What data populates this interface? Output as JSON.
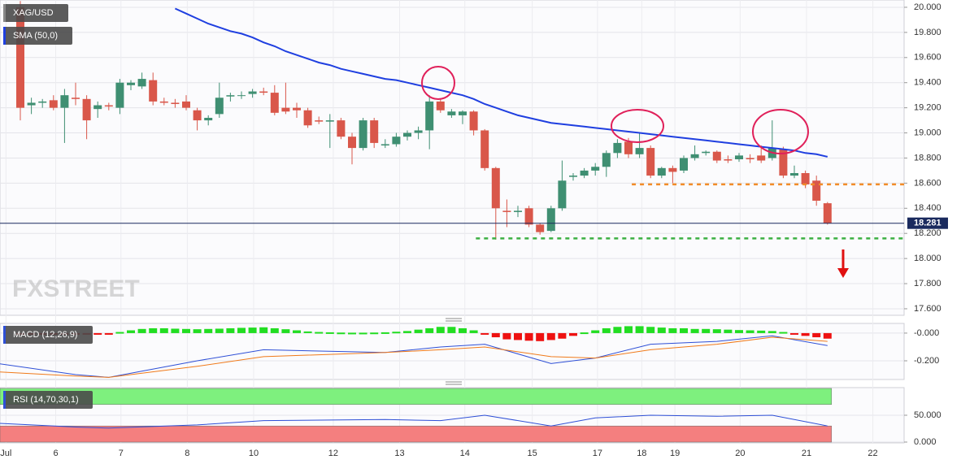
{
  "chart_data": [
    {
      "type": "candlestick",
      "title": "XAG/USD",
      "watermark": "FXSTREET",
      "ylim": [
        17.548,
        20.058
      ],
      "yticks": [
        {
          "value": 20,
          "label": "20.000"
        },
        {
          "value": 19.8,
          "label": "19.800"
        },
        {
          "value": 19.6,
          "label": "19.600"
        },
        {
          "value": 19.4,
          "label": "19.400"
        },
        {
          "value": 19.2,
          "label": "19.200"
        },
        {
          "value": 19,
          "label": "19.000"
        },
        {
          "value": 18.8,
          "label": "18.800"
        },
        {
          "value": 18.6,
          "label": "18.600"
        },
        {
          "value": 18.4,
          "label": "18.400"
        },
        {
          "value": 18.2,
          "label": "18.200"
        },
        {
          "value": 18,
          "label": "18.000"
        },
        {
          "value": 17.8,
          "label": "17.800"
        },
        {
          "value": 17.6,
          "label": "17.600"
        }
      ],
      "up_color": "#3f8f72",
      "down_color": "#d9574a",
      "open": [
        20.0,
        19.22,
        19.24,
        19.26,
        19.2,
        19.28,
        19.27,
        19.19,
        19.22,
        19.2,
        19.38,
        19.37,
        19.42,
        19.25,
        19.24,
        19.25,
        19.18,
        19.1,
        19.15,
        19.29,
        19.3,
        19.31,
        19.33,
        19.32,
        19.2,
        19.2,
        19.18,
        19.1,
        19.09,
        19.1,
        18.97,
        18.88,
        19.1,
        18.9,
        18.91,
        18.97,
        19.0,
        19.02,
        19.25,
        19.14,
        19.14,
        19.17,
        19.02,
        18.72,
        18.38,
        18.37,
        18.4,
        18.27,
        18.22,
        18.4,
        18.65,
        18.66,
        18.7,
        18.73,
        18.84,
        18.93,
        18.83,
        18.88,
        18.66,
        18.72,
        18.7,
        18.8,
        18.84,
        18.85,
        18.79,
        18.79,
        18.8,
        18.82,
        18.8,
        18.87,
        18.66,
        18.68,
        18.62,
        18.44
      ],
      "high": [
        20.05,
        19.28,
        19.27,
        19.3,
        19.35,
        19.4,
        19.3,
        19.25,
        19.24,
        19.43,
        19.42,
        19.48,
        19.48,
        19.28,
        19.27,
        19.3,
        19.2,
        19.14,
        19.4,
        19.32,
        19.33,
        19.35,
        19.36,
        19.38,
        19.4,
        19.24,
        19.2,
        19.13,
        19.15,
        19.12,
        19.0,
        19.12,
        19.12,
        18.95,
        19.0,
        19.02,
        19.05,
        19.3,
        19.27,
        19.19,
        19.18,
        19.18,
        19.03,
        18.73,
        18.47,
        18.42,
        18.42,
        18.28,
        18.42,
        18.78,
        18.68,
        18.72,
        18.76,
        18.86,
        18.95,
        18.96,
        19.0,
        18.9,
        18.73,
        18.74,
        18.82,
        18.9,
        18.86,
        18.86,
        18.82,
        18.84,
        18.83,
        18.9,
        19.1,
        18.89,
        18.74,
        18.7,
        18.66,
        18.45
      ],
      "low": [
        19.1,
        19.15,
        19.2,
        19.18,
        18.92,
        19.22,
        18.95,
        19.12,
        19.18,
        19.15,
        19.34,
        19.35,
        19.22,
        19.22,
        19.2,
        19.18,
        19.02,
        19.06,
        19.12,
        19.25,
        19.27,
        19.28,
        19.3,
        19.14,
        19.15,
        19.12,
        19.04,
        19.07,
        18.88,
        18.95,
        18.75,
        18.86,
        18.88,
        18.88,
        18.89,
        18.94,
        18.95,
        18.87,
        19.16,
        19.12,
        19.07,
        18.98,
        18.7,
        18.15,
        18.25,
        18.33,
        18.25,
        18.19,
        18.21,
        18.38,
        18.62,
        18.64,
        18.66,
        18.65,
        18.8,
        18.8,
        18.8,
        18.64,
        18.64,
        18.6,
        18.68,
        18.78,
        18.82,
        18.76,
        18.76,
        18.77,
        18.76,
        18.76,
        18.78,
        18.64,
        18.64,
        18.56,
        18.42,
        18.27
      ],
      "close": [
        19.2,
        19.24,
        19.25,
        19.2,
        19.3,
        19.27,
        19.1,
        19.22,
        19.21,
        19.4,
        19.4,
        19.43,
        19.25,
        19.24,
        19.23,
        19.2,
        19.1,
        19.12,
        19.28,
        19.3,
        19.3,
        19.33,
        19.32,
        19.16,
        19.17,
        19.18,
        19.06,
        19.09,
        19.1,
        18.97,
        18.88,
        19.1,
        18.92,
        18.91,
        18.97,
        19.0,
        19.02,
        19.25,
        19.18,
        19.17,
        19.17,
        19.02,
        18.72,
        18.4,
        18.37,
        18.38,
        18.27,
        18.21,
        18.4,
        18.62,
        18.66,
        18.7,
        18.73,
        18.84,
        18.92,
        18.83,
        18.88,
        18.66,
        18.72,
        18.69,
        18.8,
        18.83,
        18.85,
        18.78,
        18.78,
        18.82,
        18.79,
        18.78,
        18.88,
        18.66,
        18.68,
        18.59,
        18.46,
        18.281
      ],
      "series": [
        {
          "name": "SMA (50,0)",
          "color": "#1f3fe0",
          "values": [
            null,
            null,
            null,
            null,
            null,
            null,
            null,
            null,
            null,
            null,
            null,
            null,
            null,
            null,
            19.99,
            19.95,
            19.91,
            19.87,
            19.84,
            19.81,
            19.79,
            19.76,
            19.72,
            19.69,
            19.65,
            19.62,
            19.59,
            19.56,
            19.54,
            19.51,
            19.49,
            19.47,
            19.45,
            19.43,
            19.42,
            19.4,
            19.38,
            19.36,
            19.34,
            19.32,
            19.3,
            19.27,
            19.23,
            19.2,
            19.17,
            19.14,
            19.12,
            19.1,
            19.08,
            19.07,
            19.06,
            19.05,
            19.04,
            19.03,
            19.02,
            19.01,
            19.0,
            18.99,
            18.98,
            18.97,
            18.96,
            18.95,
            18.94,
            18.93,
            18.92,
            18.91,
            18.9,
            18.89,
            18.88,
            18.87,
            18.86,
            18.84,
            18.83,
            18.81
          ]
        }
      ],
      "last_price": 18.281,
      "levels": [
        {
          "value": 18.59,
          "color": "#f28c28",
          "from": 55.3
        },
        {
          "value": 18.16,
          "color": "#3cb043",
          "from": 41.2
        }
      ]
    },
    {
      "type": "macd",
      "title": "MACD (12,26,9)",
      "ylim": [
        -0.335,
        0.07
      ],
      "yticks": [
        {
          "value": 0,
          "label": "-0.000"
        },
        {
          "value": -0.2,
          "label": "-0.200"
        }
      ],
      "up_color": "#22dd22",
      "down_color": "#ee1111",
      "histogram": [
        -0.002,
        -0.002,
        -0.002,
        -0.002,
        -0.003,
        -0.008,
        -0.01,
        -0.008,
        -0.005,
        0.008,
        0.02,
        0.03,
        0.035,
        0.035,
        0.032,
        0.03,
        0.028,
        0.03,
        0.032,
        0.035,
        0.038,
        0.04,
        0.042,
        0.035,
        0.028,
        0.02,
        0.012,
        0.008,
        0.006,
        0.004,
        0.003,
        0.003,
        0.004,
        0.006,
        0.01,
        0.015,
        0.025,
        0.035,
        0.045,
        0.045,
        0.035,
        0.02,
        -0.005,
        -0.03,
        -0.045,
        -0.05,
        -0.055,
        -0.058,
        -0.05,
        -0.04,
        -0.02,
        0.005,
        0.02,
        0.035,
        0.045,
        0.05,
        0.05,
        0.045,
        0.04,
        0.035,
        0.035,
        0.03,
        0.03,
        0.028,
        0.025,
        0.022,
        0.02,
        0.018,
        0.015,
        0.008,
        -0.005,
        -0.02,
        -0.03,
        -0.04
      ],
      "x": [
        -2,
        5,
        8,
        16,
        22,
        33,
        38,
        42,
        48,
        52,
        57,
        63,
        68,
        73
      ],
      "series": [
        {
          "color": "#2e4fd6",
          "values": [
            -0.22,
            -0.3,
            -0.32,
            -0.2,
            -0.12,
            -0.14,
            -0.1,
            -0.08,
            -0.22,
            -0.18,
            -0.08,
            -0.06,
            -0.02,
            -0.09
          ]
        },
        {
          "color": "#f07a1a",
          "values": [
            -0.28,
            -0.31,
            -0.32,
            -0.24,
            -0.17,
            -0.14,
            -0.12,
            -0.1,
            -0.17,
            -0.18,
            -0.12,
            -0.08,
            -0.03,
            -0.06
          ]
        }
      ]
    },
    {
      "type": "rsi",
      "title": "RSI (14,70,30,1)",
      "ylim": [
        -1.5,
        101.5
      ],
      "yticks": [
        {
          "value": 50,
          "label": "50.000"
        },
        {
          "value": 0,
          "label": "0.000"
        }
      ],
      "bands": [
        {
          "range": [
            70,
            100
          ],
          "color": "#7ef07e"
        },
        {
          "range": [
            0,
            30
          ],
          "color": "#f47f7f"
        }
      ],
      "x": [
        -2,
        5,
        8,
        16,
        22,
        33,
        38,
        42,
        48,
        52,
        57,
        63,
        68,
        73
      ],
      "series": [
        {
          "color": "#2e4fd6",
          "values": [
            35,
            28,
            26,
            32,
            40,
            42,
            40,
            50,
            30,
            45,
            50,
            48,
            50,
            30
          ]
        }
      ],
      "xticks": [
        {
          "value": -1.3,
          "label": "Jul"
        },
        {
          "value": 3.2,
          "label": "6"
        },
        {
          "value": 9.1,
          "label": "7"
        },
        {
          "value": 15.1,
          "label": "8"
        },
        {
          "value": 21.1,
          "label": "10"
        },
        {
          "value": 28.3,
          "label": "12"
        },
        {
          "value": 34.3,
          "label": "13"
        },
        {
          "value": 40.2,
          "label": "14"
        },
        {
          "value": 46.3,
          "label": "15"
        },
        {
          "value": 52.2,
          "label": "17"
        },
        {
          "value": 56.2,
          "label": "18"
        },
        {
          "value": 59.2,
          "label": "19"
        },
        {
          "value": 65.1,
          "label": "20"
        },
        {
          "value": 71.1,
          "label": "21"
        },
        {
          "value": 77.1,
          "label": "22"
        }
      ]
    }
  ]
}
